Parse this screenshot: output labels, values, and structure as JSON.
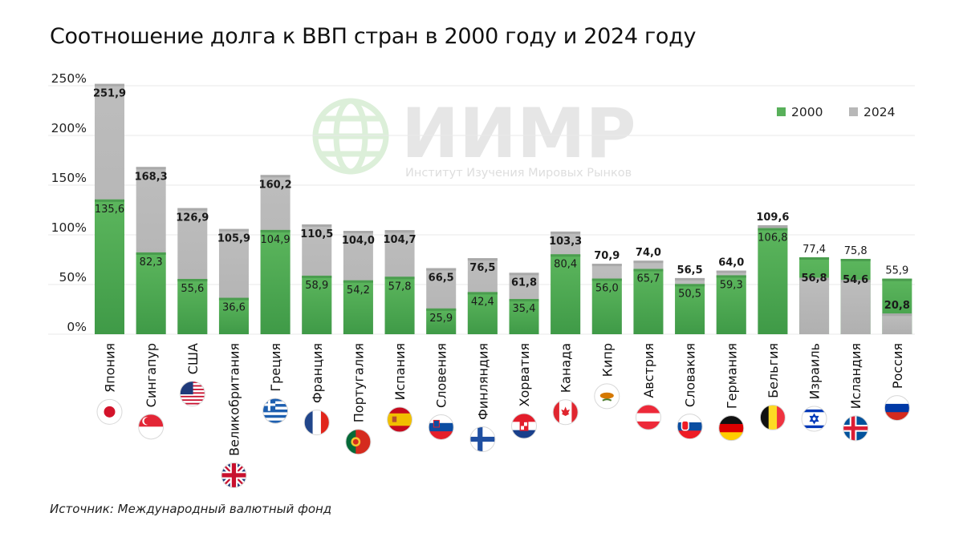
{
  "title": "Соотношение долга к ВВП стран в 2000 году и 2024 году",
  "source": "Источник: Международный валютный фонд",
  "watermark": {
    "name": "ИИМР",
    "subtitle": "Институт Изучения Мировых Рынков",
    "color": "#dcefd9"
  },
  "chart_data": {
    "type": "bar",
    "mode": "overlapping",
    "categories": [
      "Япония",
      "Сингапур",
      "США",
      "Великобритания",
      "Греция",
      "Франция",
      "Португалия",
      "Испания",
      "Словения",
      "Финляндия",
      "Хорватия",
      "Канада",
      "Кипр",
      "Австрия",
      "Словакия",
      "Германия",
      "Бельгия",
      "Израиль",
      "Исландия",
      "Россия"
    ],
    "flag_icons": [
      "japan-flag-icon",
      "singapore-flag-icon",
      "usa-flag-icon",
      "uk-flag-icon",
      "greece-flag-icon",
      "france-flag-icon",
      "portugal-flag-icon",
      "spain-flag-icon",
      "slovenia-flag-icon",
      "finland-flag-icon",
      "croatia-flag-icon",
      "canada-flag-icon",
      "cyprus-flag-icon",
      "austria-flag-icon",
      "slovakia-flag-icon",
      "germany-flag-icon",
      "belgium-flag-icon",
      "israel-flag-icon",
      "iceland-flag-icon",
      "russia-flag-icon"
    ],
    "series": [
      {
        "name": "2000",
        "color": "#58b05a",
        "values": [
          135.6,
          82.3,
          55.6,
          36.6,
          104.9,
          58.9,
          54.2,
          57.8,
          25.9,
          42.4,
          35.4,
          80.4,
          56.0,
          65.7,
          50.5,
          59.3,
          106.8,
          77.4,
          75.8,
          55.9
        ],
        "labels": [
          "135,6",
          "82,3",
          "55,6",
          "36,6",
          "104,9",
          "58,9",
          "54,2",
          "57,8",
          "25,9",
          "42,4",
          "35,4",
          "80,4",
          "56,0",
          "65,7",
          "50,5",
          "59,3",
          "106,8",
          "77,4",
          "75,8",
          "55,9"
        ]
      },
      {
        "name": "2024",
        "color": "#b8b8b8",
        "values": [
          251.9,
          168.3,
          126.9,
          105.9,
          160.2,
          110.5,
          104.0,
          104.7,
          66.5,
          76.5,
          61.8,
          103.3,
          70.9,
          74.0,
          56.5,
          64.0,
          109.6,
          56.8,
          54.6,
          20.8
        ],
        "labels": [
          "251,9",
          "168,3",
          "126,9",
          "105,9",
          "160,2",
          "110,5",
          "104,0",
          "104,7",
          "66,5",
          "76,5",
          "61,8",
          "103,3",
          "70,9",
          "74,0",
          "56,5",
          "64,0",
          "109,6",
          "56,8",
          "54,6",
          "20,8"
        ]
      }
    ],
    "ylim": [
      0,
      250
    ],
    "yticks": [
      "0%",
      "50%",
      "100%",
      "150%",
      "200%",
      "250%"
    ],
    "grid": true,
    "legend": "top-right"
  }
}
